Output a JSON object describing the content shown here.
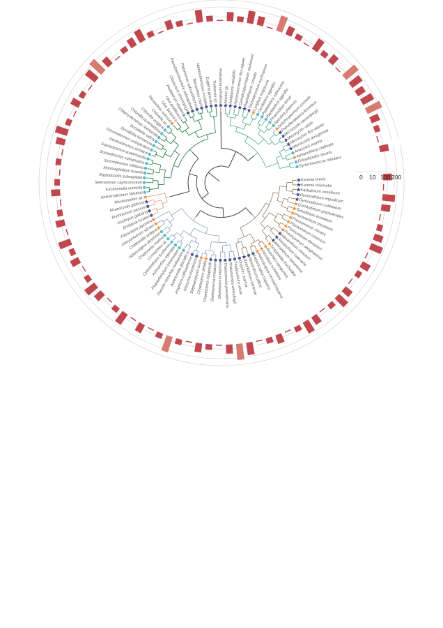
{
  "scale_axis": {
    "ticks": [
      "0",
      "10",
      "100",
      "200"
    ]
  },
  "colors": {
    "clades": {
      "cyanobacteria": "#4aa88f",
      "dinoflagellates": "#94785f",
      "diatoms": "#8c9cc0",
      "haptophytes": "#e09a80",
      "chlorophytes": "#1b7040",
      "red_branch": "#e04040",
      "backbone": "#404040"
    },
    "bar": "#c0474e",
    "bar_light": "#d77b70",
    "marker_dot_teal": "#5bb8c6",
    "marker_dot_navy": "#4a5f8e",
    "marker_dot_pink": "#f2b5cb",
    "marker_star_navy": "#3c467d",
    "marker_star_orange": "#ef8a3c",
    "ring": "#c9c9c9"
  },
  "leaves": [
    {
      "name": "Karenia brevis",
      "clade": "dinoflagellates",
      "marker": "star_navy",
      "bar": 2
    },
    {
      "name": "Karenia mikimotoi",
      "clade": "dinoflagellates",
      "marker": "star_navy",
      "bar": 0
    },
    {
      "name": "Karlodinium veneficum",
      "clade": "dinoflagellates",
      "marker": "star_navy",
      "bar": 3
    },
    {
      "name": "Gymnodinium impudicum",
      "clade": "dinoflagellates",
      "marker": "star_navy",
      "bar": 2
    },
    {
      "name": "Gymnodinium catenatum",
      "clade": "dinoflagellates",
      "marker": "star_navy",
      "bar": 0
    },
    {
      "name": "Cochlodinium polykrikoides",
      "clade": "dinoflagellates",
      "marker": "star_orange",
      "bar": 1
    },
    {
      "name": "Gyrodinium instriatum",
      "clade": "dinoflagellates",
      "marker": "star_orange",
      "bar": 2
    },
    {
      "name": "Prorocentrum triestinum",
      "clade": "dinoflagellates",
      "marker": "star_orange",
      "bar": 3
    },
    {
      "name": "Prorocentrum micans",
      "clade": "dinoflagellates",
      "marker": "star_orange",
      "bar": 0
    },
    {
      "name": "Prorocentrum minimum",
      "clade": "dinoflagellates",
      "marker": "star_orange",
      "bar": 2
    },
    {
      "name": "Prorocentrum dentatum",
      "clade": "dinoflagellates",
      "marker": "star_orange",
      "bar": 1
    },
    {
      "name": "Prorocentrum donghaiense",
      "clade": "dinoflagellates",
      "marker": "star_orange",
      "bar": 0
    },
    {
      "name": "Alexandrium minutum",
      "clade": "dinoflagellates",
      "marker": "star_navy",
      "bar": 2
    },
    {
      "name": "Alexandrium catenella",
      "clade": "dinoflagellates",
      "marker": "star_navy",
      "bar": 3
    },
    {
      "name": "Alexandrium tamarense",
      "clade": "dinoflagellates",
      "marker": "star_navy",
      "bar": 1
    },
    {
      "name": "Scrippsiella trochoidea",
      "clade": "dinoflagellates",
      "marker": "star_orange",
      "bar": 0
    },
    {
      "name": "Akashiwo sanguinea",
      "clade": "dinoflagellates",
      "marker": "star_orange",
      "bar": 2
    },
    {
      "name": "Noctiluca scintillans",
      "clade": "dinoflagellates",
      "marker": "star_orange",
      "bar": 3
    },
    {
      "name": "Heterocapsa circularisquama",
      "clade": "dinoflagellates",
      "marker": "star_orange",
      "bar": 1
    },
    {
      "name": "Heterocapsa triquetra",
      "clade": "dinoflagellates",
      "marker": "dot_navy",
      "bar": 0
    },
    {
      "name": "Alexandrium affine",
      "clade": "dinoflagellates",
      "marker": "dot_navy",
      "bar": 2
    },
    {
      "name": "Amphidinium carterae",
      "clade": "dinoflagellates",
      "marker": "star_navy",
      "bar": 1
    },
    {
      "name": "Oxyrrhis marina",
      "clade": "dinoflagellates",
      "marker": "dot_navy",
      "bar": 0
    },
    {
      "name": "Thalassiosira rotula",
      "clade": "diatoms",
      "marker": "dot_navy",
      "bar": 3
    },
    {
      "name": "Thalassiosira weissflogii",
      "clade": "diatoms",
      "marker": "dot_navy",
      "bar": 4
    },
    {
      "name": "Thalassiosira pseudonana",
      "clade": "diatoms",
      "marker": "dot_navy",
      "bar": 2
    },
    {
      "name": "Skeletonema marinoi",
      "clade": "diatoms",
      "marker": "dot_navy",
      "bar": 0
    },
    {
      "name": "Skeletonema costatum",
      "clade": "diatoms",
      "marker": "dot_navy",
      "bar": 1
    },
    {
      "name": "Chaetoceros neogracile",
      "clade": "diatoms",
      "marker": "dot_navy",
      "bar": 2
    },
    {
      "name": "Chaetoceros debilis",
      "clade": "diatoms",
      "marker": "star_orange",
      "bar": 0
    },
    {
      "name": "Stephanopyxis turris",
      "clade": "diatoms",
      "marker": "star_orange",
      "bar": 1
    },
    {
      "name": "Nitzschia closterium",
      "clade": "diatoms",
      "marker": "dot_navy",
      "bar": 4
    },
    {
      "name": "Amphora coffeaeformis",
      "clade": "diatoms",
      "marker": "dot_navy",
      "bar": 1
    },
    {
      "name": "Asterionella glacialis",
      "clade": "diatoms",
      "marker": "dot_pink",
      "bar": 0
    },
    {
      "name": "Pseudo-nitzschia multiseries",
      "clade": "diatoms",
      "marker": "dot_teal",
      "bar": 2
    },
    {
      "name": "Phaeodactylum tricornutum",
      "clade": "diatoms",
      "marker": "dot_teal",
      "bar": 0
    },
    {
      "name": "Achnanthes taeniata",
      "clade": "diatoms",
      "marker": "dot_teal",
      "bar": 3
    },
    {
      "name": "Cylindrotheca fusiformis",
      "clade": "diatoms",
      "marker": "dot_teal",
      "bar": 1
    },
    {
      "name": "Licmophora sp.",
      "clade": "diatoms",
      "marker": "dot_teal",
      "bar": 0
    },
    {
      "name": "Chattonella marina",
      "clade": "diatoms",
      "marker": "dot_teal",
      "bar": 2
    },
    {
      "name": "Heterosigma akashiwo",
      "clade": "diatoms",
      "marker": "dot_teal",
      "bar": 3
    },
    {
      "name": "Chattonella antiqua",
      "clade": "diatoms",
      "marker": "star_orange",
      "bar": 1
    },
    {
      "name": "Gonyostomum semen",
      "clade": "diatoms",
      "marker": "star_orange",
      "bar": 0
    },
    {
      "name": "Fibrocapsa japonica",
      "clade": "diatoms",
      "marker": "star_orange",
      "bar": 2
    },
    {
      "name": "Emiliania huxleyi",
      "clade": "haptophytes",
      "marker": "dot_navy",
      "bar": 1
    },
    {
      "name": "Isochrysis galbana",
      "clade": "haptophytes",
      "marker": "dot_navy",
      "bar": 3
    },
    {
      "name": "Prymnesium parvum",
      "clade": "haptophytes",
      "marker": "dot_navy",
      "bar": 0
    },
    {
      "name": "Phaeocystis globosa",
      "clade": "haptophytes",
      "marker": "star_navy",
      "bar": 2
    },
    {
      "name": "Rhodomonas sp.",
      "clade": "haptophytes",
      "marker": "star_orange",
      "bar": 1
    },
    {
      "name": "Ankistrodesmus falcatus",
      "clade": "chlorophytes",
      "marker": "dot_teal",
      "bar": 0
    },
    {
      "name": "Kirchneriella contorta",
      "clade": "chlorophytes",
      "marker": "dot_teal",
      "bar": 2
    },
    {
      "name": "Selenastrum capricornutum",
      "clade": "chlorophytes",
      "marker": "dot_teal",
      "bar": 1
    },
    {
      "name": "Raphidocelis subcapitata",
      "clade": "chlorophytes",
      "marker": "dot_teal",
      "bar": 0
    },
    {
      "name": "Monoraphidium braunii",
      "clade": "chlorophytes",
      "marker": "dot_teal",
      "bar": 1
    },
    {
      "name": "Scenedesmus obliquus",
      "clade": "chlorophytes",
      "marker": "dot_teal",
      "bar": 0
    },
    {
      "name": "Scenedesmus subspicatus",
      "clade": "chlorophytes",
      "marker": "dot_teal",
      "bar": 2
    },
    {
      "name": "Scenedesmus quadricauda",
      "clade": "chlorophytes",
      "marker": "dot_teal",
      "bar": 3
    },
    {
      "name": "Desmodesmus armatus",
      "clade": "chlorophytes",
      "marker": "dot_teal",
      "bar": 1
    },
    {
      "name": "Desmodesmus subspicatus",
      "clade": "chlorophytes",
      "marker": "dot_teal",
      "bar": 0
    },
    {
      "name": "Dunaliella tertiolecta",
      "clade": "chlorophytes",
      "marker": "dot_teal",
      "bar": 2
    },
    {
      "name": "Dunaliella salina",
      "clade": "chlorophytes",
      "marker": "dot_teal",
      "bar": 1
    },
    {
      "name": "Chlamydomonas reinhardtii",
      "clade": "chlorophytes",
      "marker": "dot_teal",
      "bar": 0
    },
    {
      "name": "Chlorella pyrenoidosa",
      "clade": "chlorophytes",
      "marker": "dot_teal",
      "bar": 3
    },
    {
      "name": "Chlorella vulgaris",
      "clade": "chlorophytes",
      "marker": "dot_teal",
      "bar": 4
    },
    {
      "name": "Chlorella sp.",
      "clade": "chlorophytes",
      "marker": "dot_teal",
      "bar": 2
    },
    {
      "name": "Tetraselmis suecica",
      "clade": "chlorophytes",
      "marker": "star_orange",
      "bar": 0
    },
    {
      "name": "Ulva lactuca",
      "clade": "chlorophytes",
      "marker": "dot_pink",
      "bar": 1
    },
    {
      "name": "Ulva prolifera",
      "clade": "chlorophytes",
      "marker": "dot_pink",
      "bar": 2
    },
    {
      "name": "Pediastrum duplex",
      "clade": "chlorophytes",
      "marker": "dot_teal",
      "bar": 3
    },
    {
      "name": "Closterium ehrenbergii",
      "clade": "chlorophytes",
      "marker": "dot_navy",
      "bar": 1
    },
    {
      "name": "Pseudokirchneriella subcapitata",
      "clade": "chlorophytes",
      "marker": "dot_navy",
      "bar": 0
    },
    {
      "name": "Platymonas subcordiformis",
      "clade": "chlorophytes",
      "marker": "dot_navy",
      "bar": 2
    },
    {
      "name": "Tetraselmis chuii",
      "clade": "chlorophytes",
      "marker": "dot_navy",
      "bar": 1
    },
    {
      "name": "Nannochloropsis oculata",
      "clade": "chlorophytes",
      "marker": "dot_navy",
      "bar": 0
    },
    {
      "name": "Euglena gracilis",
      "clade": "chlorophytes",
      "marker": "dot_navy",
      "bar": 3
    },
    {
      "name": "Trebouxia sp.",
      "clade": "chlorophytes",
      "marker": "dot_navy",
      "bar": 1
    },
    {
      "name": "Anabaena cylindrica",
      "clade": "red_branch",
      "marker": "star_navy",
      "bar": 0
    },
    {
      "name": "Nostoc sp.",
      "clade": "cyanobacteria",
      "marker": "star_navy",
      "bar": 2
    },
    {
      "name": "Anabaena variabilis",
      "clade": "cyanobacteria",
      "marker": "star_navy",
      "bar": 1
    },
    {
      "name": "Aphanizomenon flos-aquae",
      "clade": "cyanobacteria",
      "marker": "star_navy",
      "bar": 3
    },
    {
      "name": "Cylindrospermopsis raciborskii",
      "clade": "cyanobacteria",
      "marker": "star_navy",
      "bar": 2
    },
    {
      "name": "Raphidiopsis curvata",
      "clade": "cyanobacteria",
      "marker": "star_navy",
      "bar": 0
    },
    {
      "name": "Trichodesmium erythraeum",
      "clade": "cyanobacteria",
      "marker": "star_navy",
      "bar": 4
    },
    {
      "name": "Lyngbya majuscula",
      "clade": "cyanobacteria",
      "marker": "star_orange",
      "bar": 2
    },
    {
      "name": "Oscillatoria agardhii",
      "clade": "cyanobacteria",
      "marker": "dot_teal",
      "bar": 1
    },
    {
      "name": "Planktothrix rubescens",
      "clade": "cyanobacteria",
      "marker": "dot_teal",
      "bar": 0
    },
    {
      "name": "Planktothrix agardhii",
      "clade": "cyanobacteria",
      "marker": "dot_teal",
      "bar": 3
    },
    {
      "name": "Phormidium tenue",
      "clade": "cyanobacteria",
      "marker": "dot_teal",
      "bar": 1
    },
    {
      "name": "Spirulina platensis",
      "clade": "cyanobacteria",
      "marker": "dot_teal",
      "bar": 2
    },
    {
      "name": "Dolichospermum circinale",
      "clade": "cyanobacteria",
      "marker": "star_orange",
      "bar": 0
    },
    {
      "name": "Pseudanabaena limnetica",
      "clade": "cyanobacteria",
      "marker": "star_navy",
      "bar": 4
    },
    {
      "name": "Microcystis wesenbergii",
      "clade": "cyanobacteria",
      "marker": "star_navy",
      "bar": 3
    },
    {
      "name": "Microcystis viridis",
      "clade": "cyanobacteria",
      "marker": "star_navy",
      "bar": 2
    },
    {
      "name": "Microcystis flos-aquae",
      "clade": "cyanobacteria",
      "marker": "star_navy",
      "bar": 3
    },
    {
      "name": "Microcystis aeruginosa",
      "clade": "cyanobacteria",
      "marker": "star_navy",
      "bar": 4
    },
    {
      "name": "Anacystis marina",
      "clade": "cyanobacteria",
      "marker": "dot_teal",
      "bar": 2
    },
    {
      "name": "Aphanothece clathrata",
      "clade": "cyanobacteria",
      "marker": "star_orange",
      "bar": 1
    },
    {
      "name": "Entophysalis deusta",
      "clade": "cyanobacteria",
      "marker": "dot_teal",
      "bar": 0
    },
    {
      "name": "Synechococcus natulans",
      "clade": "cyanobacteria",
      "marker": "dot_teal",
      "bar": 2
    }
  ]
}
